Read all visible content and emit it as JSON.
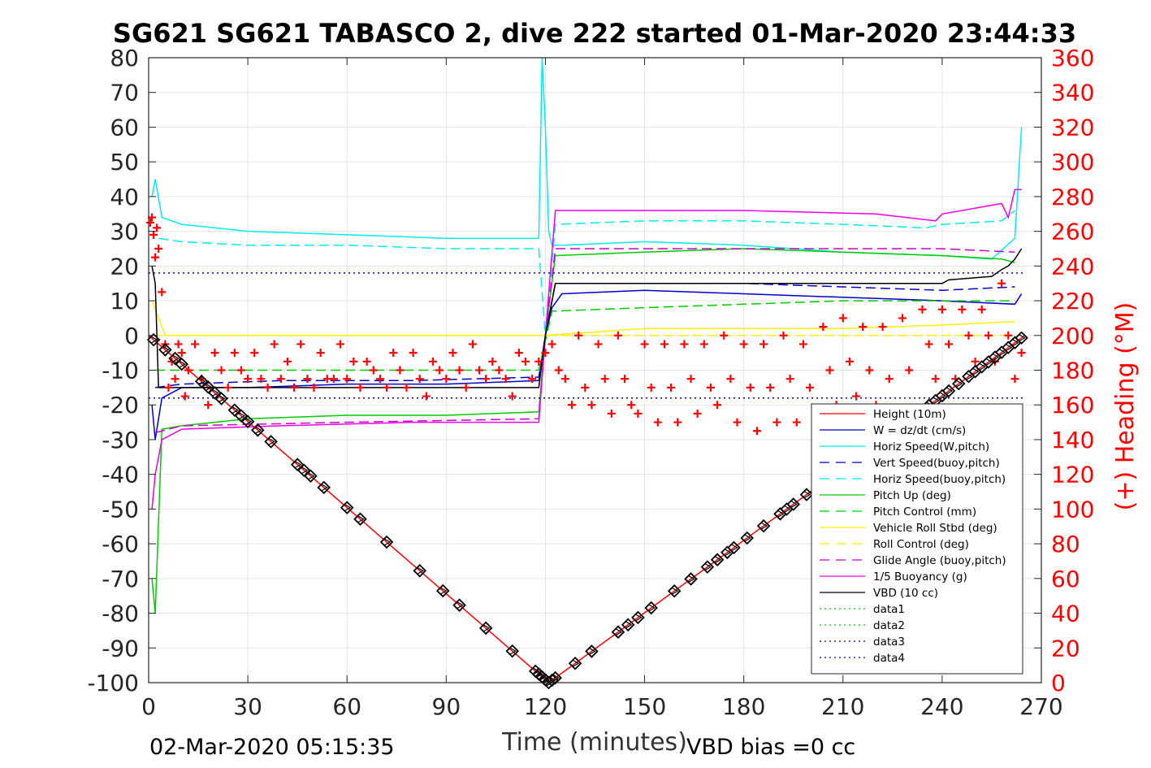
{
  "chart_data": {
    "type": "line",
    "title": "SG621 SG621 TABASCO 2, dive 222 started 01-Mar-2020 23:44:33",
    "xlabel": "Time (minutes)",
    "ylabel": "",
    "y2label": "(+) Heading (°M)",
    "xlim": [
      0,
      270
    ],
    "ylim": [
      -100,
      80
    ],
    "y2lim": [
      0,
      360
    ],
    "xticks": [
      0,
      30,
      60,
      90,
      120,
      150,
      180,
      210,
      240,
      270
    ],
    "yticks": [
      80,
      70,
      60,
      50,
      40,
      30,
      20,
      10,
      0,
      -10,
      -20,
      -30,
      -40,
      -50,
      -60,
      -70,
      -80,
      -90,
      -100
    ],
    "y2ticks": [
      360,
      340,
      320,
      300,
      280,
      260,
      240,
      220,
      200,
      180,
      160,
      140,
      120,
      100,
      80,
      60,
      40,
      20,
      0
    ],
    "grid": true,
    "legend_position": "bottom-right",
    "footer_left": "02-Mar-2020 05:15:35",
    "footer_right": "VBD bias =0 cc",
    "series": [
      {
        "name": "Height (10m)",
        "color": "#ff0000",
        "style": "solid",
        "x": [
          0,
          121,
          265
        ],
        "y": [
          0,
          -100,
          0
        ]
      },
      {
        "name": "W = dz/dt (cm/s)",
        "color": "#0000cc",
        "style": "solid",
        "x": [
          1,
          2,
          4,
          10,
          30,
          60,
          90,
          118,
          120,
          122,
          125,
          150,
          180,
          210,
          240,
          262,
          264
        ],
        "y": [
          -20,
          -30,
          -18,
          -15,
          -15,
          -14,
          -14,
          -13,
          0,
          8,
          12,
          13,
          12,
          11,
          10,
          9,
          12
        ]
      },
      {
        "name": "Horiz Speed(W,pitch)",
        "color": "#00eeee",
        "style": "solid",
        "x": [
          1,
          2,
          4,
          10,
          30,
          60,
          90,
          118,
          119,
          120,
          121,
          122,
          125,
          150,
          180,
          210,
          240,
          255,
          262,
          264
        ],
        "y": [
          40,
          45,
          34,
          32,
          30,
          29,
          28,
          28,
          80,
          60,
          30,
          26,
          26,
          27,
          26,
          24,
          23,
          22,
          28,
          60
        ]
      },
      {
        "name": "Vert Speed(buoy,pitch)",
        "color": "#0000cc",
        "style": "dashed",
        "x": [
          2,
          10,
          40,
          80,
          118,
          120,
          123,
          150,
          180,
          210,
          240,
          262
        ],
        "y": [
          -15,
          -14,
          -13,
          -13,
          -12,
          0,
          15,
          15,
          15,
          14,
          13,
          14
        ]
      },
      {
        "name": "Horiz Speed(buoy,pitch)",
        "color": "#00eeee",
        "style": "dashed",
        "x": [
          3,
          10,
          30,
          60,
          90,
          118,
          120,
          123,
          150,
          180,
          210,
          235,
          240,
          258,
          262
        ],
        "y": [
          28,
          27,
          26,
          26,
          25,
          25,
          0,
          32,
          33,
          33,
          32,
          31,
          32,
          33,
          36
        ]
      },
      {
        "name": "Pitch Up (deg)",
        "color": "#00cc00",
        "style": "solid",
        "x": [
          1,
          2,
          4,
          10,
          30,
          60,
          90,
          118,
          120,
          123,
          150,
          180,
          210,
          240,
          258,
          262
        ],
        "y": [
          -70,
          -80,
          -27,
          -26,
          -24,
          -23,
          -23,
          -22,
          0,
          23,
          24,
          25,
          24,
          23,
          22,
          21
        ]
      },
      {
        "name": "Pitch Control (mm)",
        "color": "#00cc00",
        "style": "dashed",
        "x": [
          2,
          30,
          60,
          90,
          118,
          122,
          150,
          180,
          210,
          240,
          262
        ],
        "y": [
          -10,
          -10,
          -10,
          -10,
          -10,
          7,
          8,
          9,
          10,
          10,
          10
        ]
      },
      {
        "name": "Vehicle Roll Stbd (deg)",
        "color": "#ffee00",
        "style": "solid",
        "x": [
          1,
          3,
          5,
          10,
          30,
          60,
          90,
          118,
          120,
          150,
          180,
          210,
          240,
          262
        ],
        "y": [
          10,
          5,
          0,
          0,
          0,
          0,
          0,
          0,
          0,
          2,
          2,
          2,
          3,
          4
        ]
      },
      {
        "name": "Roll Control (deg)",
        "color": "#ffee00",
        "style": "dashed",
        "x": [
          1,
          118,
          122,
          262
        ],
        "y": [
          0,
          0,
          0,
          0
        ]
      },
      {
        "name": "Glide Angle (buoy,pitch)",
        "color": "#cc00cc",
        "style": "dashed",
        "x": [
          2,
          10,
          60,
          118,
          120,
          123,
          180,
          240,
          262
        ],
        "y": [
          -28,
          -26,
          -25,
          -24,
          0,
          25,
          25,
          25,
          24
        ]
      },
      {
        "name": "1/5 Buoyancy (g)",
        "color": "#ee00ee",
        "style": "solid",
        "x": [
          1,
          2,
          4,
          10,
          40,
          80,
          118,
          120,
          123,
          180,
          220,
          238,
          240,
          258,
          260,
          262,
          264
        ],
        "y": [
          -50,
          -40,
          -30,
          -27,
          -26,
          -25,
          -25,
          0,
          36,
          36,
          35,
          33,
          35,
          38,
          34,
          42,
          42
        ]
      },
      {
        "name": "VBD (10 cc)",
        "color": "#000000",
        "style": "solid",
        "x": [
          1,
          2,
          3,
          118,
          120,
          123,
          240,
          242,
          255,
          258,
          260,
          262,
          264
        ],
        "y": [
          20,
          15,
          -15,
          -15,
          0,
          15,
          15,
          16,
          17,
          19,
          20,
          22,
          25
        ]
      },
      {
        "name": "data1",
        "color": "#00cc00",
        "style": "dotted",
        "x": [],
        "y": []
      },
      {
        "name": "data2",
        "color": "#00cc00",
        "style": "dotted",
        "x": [],
        "y": []
      },
      {
        "name": "data3",
        "color": "#0000cc",
        "style": "dotted",
        "x": [
          0,
          265
        ],
        "y": [
          18,
          18
        ]
      },
      {
        "name": "data4",
        "color": "#0000cc",
        "style": "dotted",
        "x": [
          0,
          265
        ],
        "y": [
          -18,
          -18
        ]
      }
    ],
    "heading_points": {
      "name": "(+) Heading (°M)",
      "color": "#ff0000",
      "marker": "+",
      "axis": "right",
      "x": [
        0.5,
        1,
        1.5,
        2,
        2.5,
        3,
        4,
        5,
        6,
        7,
        8,
        9,
        10,
        11,
        12,
        14,
        16,
        18,
        20,
        22,
        24,
        26,
        28,
        30,
        32,
        34,
        36,
        38,
        40,
        42,
        44,
        46,
        48,
        50,
        52,
        54,
        56,
        58,
        60,
        62,
        64,
        66,
        68,
        70,
        72,
        74,
        76,
        78,
        80,
        82,
        84,
        86,
        88,
        90,
        92,
        94,
        96,
        98,
        100,
        102,
        104,
        106,
        108,
        110,
        112,
        114,
        116,
        118,
        120,
        122,
        124,
        126,
        128,
        130,
        132,
        134,
        136,
        138,
        140,
        142,
        144,
        146,
        148,
        150,
        152,
        154,
        156,
        158,
        160,
        162,
        164,
        166,
        168,
        170,
        172,
        174,
        176,
        178,
        180,
        182,
        184,
        186,
        188,
        190,
        192,
        194,
        196,
        198,
        200,
        202,
        204,
        206,
        208,
        210,
        212,
        214,
        216,
        218,
        220,
        222,
        224,
        226,
        228,
        230,
        232,
        234,
        236,
        238,
        240,
        242,
        244,
        246,
        248,
        250,
        252,
        254,
        256,
        258,
        260,
        262,
        264
      ],
      "y": [
        265,
        268,
        258,
        245,
        262,
        250,
        225,
        195,
        170,
        185,
        175,
        195,
        190,
        165,
        180,
        195,
        175,
        160,
        190,
        180,
        170,
        190,
        180,
        175,
        190,
        175,
        170,
        195,
        175,
        185,
        170,
        195,
        175,
        170,
        190,
        175,
        175,
        195,
        175,
        185,
        170,
        185,
        180,
        175,
        170,
        190,
        180,
        170,
        190,
        175,
        165,
        185,
        180,
        175,
        190,
        180,
        170,
        195,
        180,
        175,
        185,
        180,
        175,
        165,
        190,
        185,
        175,
        185,
        190,
        195,
        180,
        175,
        160,
        200,
        170,
        160,
        195,
        175,
        155,
        200,
        175,
        160,
        155,
        195,
        170,
        150,
        195,
        170,
        150,
        195,
        175,
        155,
        195,
        170,
        160,
        200,
        175,
        150,
        195,
        170,
        145,
        195,
        170,
        150,
        200,
        175,
        150,
        195,
        170,
        145,
        205,
        180,
        160,
        210,
        185,
        165,
        205,
        180,
        160,
        205,
        175,
        150,
        210,
        180,
        155,
        215,
        195,
        175,
        215,
        195,
        175,
        215,
        200,
        185,
        215,
        200,
        185,
        230,
        200,
        175,
        190
      ]
    },
    "height_markers": {
      "marker": "diamond",
      "color": "#000000",
      "x": [
        1.5,
        5,
        8,
        10,
        16,
        18,
        20,
        22,
        26,
        28,
        30,
        33,
        37,
        45,
        47,
        49,
        53,
        60,
        64,
        72,
        82,
        89,
        94,
        102,
        110,
        117,
        118,
        119,
        120,
        121,
        122,
        123,
        129,
        134,
        142,
        145,
        148,
        152,
        159,
        164,
        169,
        172,
        175,
        177,
        181,
        186,
        191,
        193,
        195,
        199,
        204,
        206,
        213,
        220,
        226,
        231,
        236,
        238,
        240,
        242,
        245,
        248,
        250,
        252,
        254,
        256,
        258,
        260,
        262,
        264
      ]
    }
  }
}
